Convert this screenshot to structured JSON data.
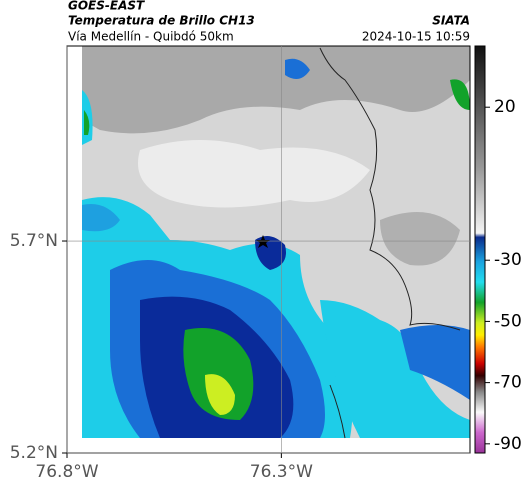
{
  "header": {
    "title": "GOES-EAST",
    "subtitle": "Temperatura de Brillo CH13",
    "source": "SIATA",
    "region": "Vía Medellín - Quibdó 50km",
    "timestamp": "2024-10-15 10:59"
  },
  "map": {
    "xlim": [
      -76.8,
      -75.86
    ],
    "ylim": [
      5.2,
      6.16
    ],
    "xticks": [
      {
        "value": -76.8,
        "label": "76.8°W"
      },
      {
        "value": -76.3,
        "label": "76.3°W"
      }
    ],
    "yticks": [
      {
        "value": 5.2,
        "label": "5.2°N"
      },
      {
        "value": 5.7,
        "label": "5.7°N"
      }
    ],
    "grid": true
  },
  "colorbar": {
    "clim": [
      40,
      -93
    ],
    "ticks": [
      20,
      -30,
      -50,
      -70,
      -90
    ]
  }
}
